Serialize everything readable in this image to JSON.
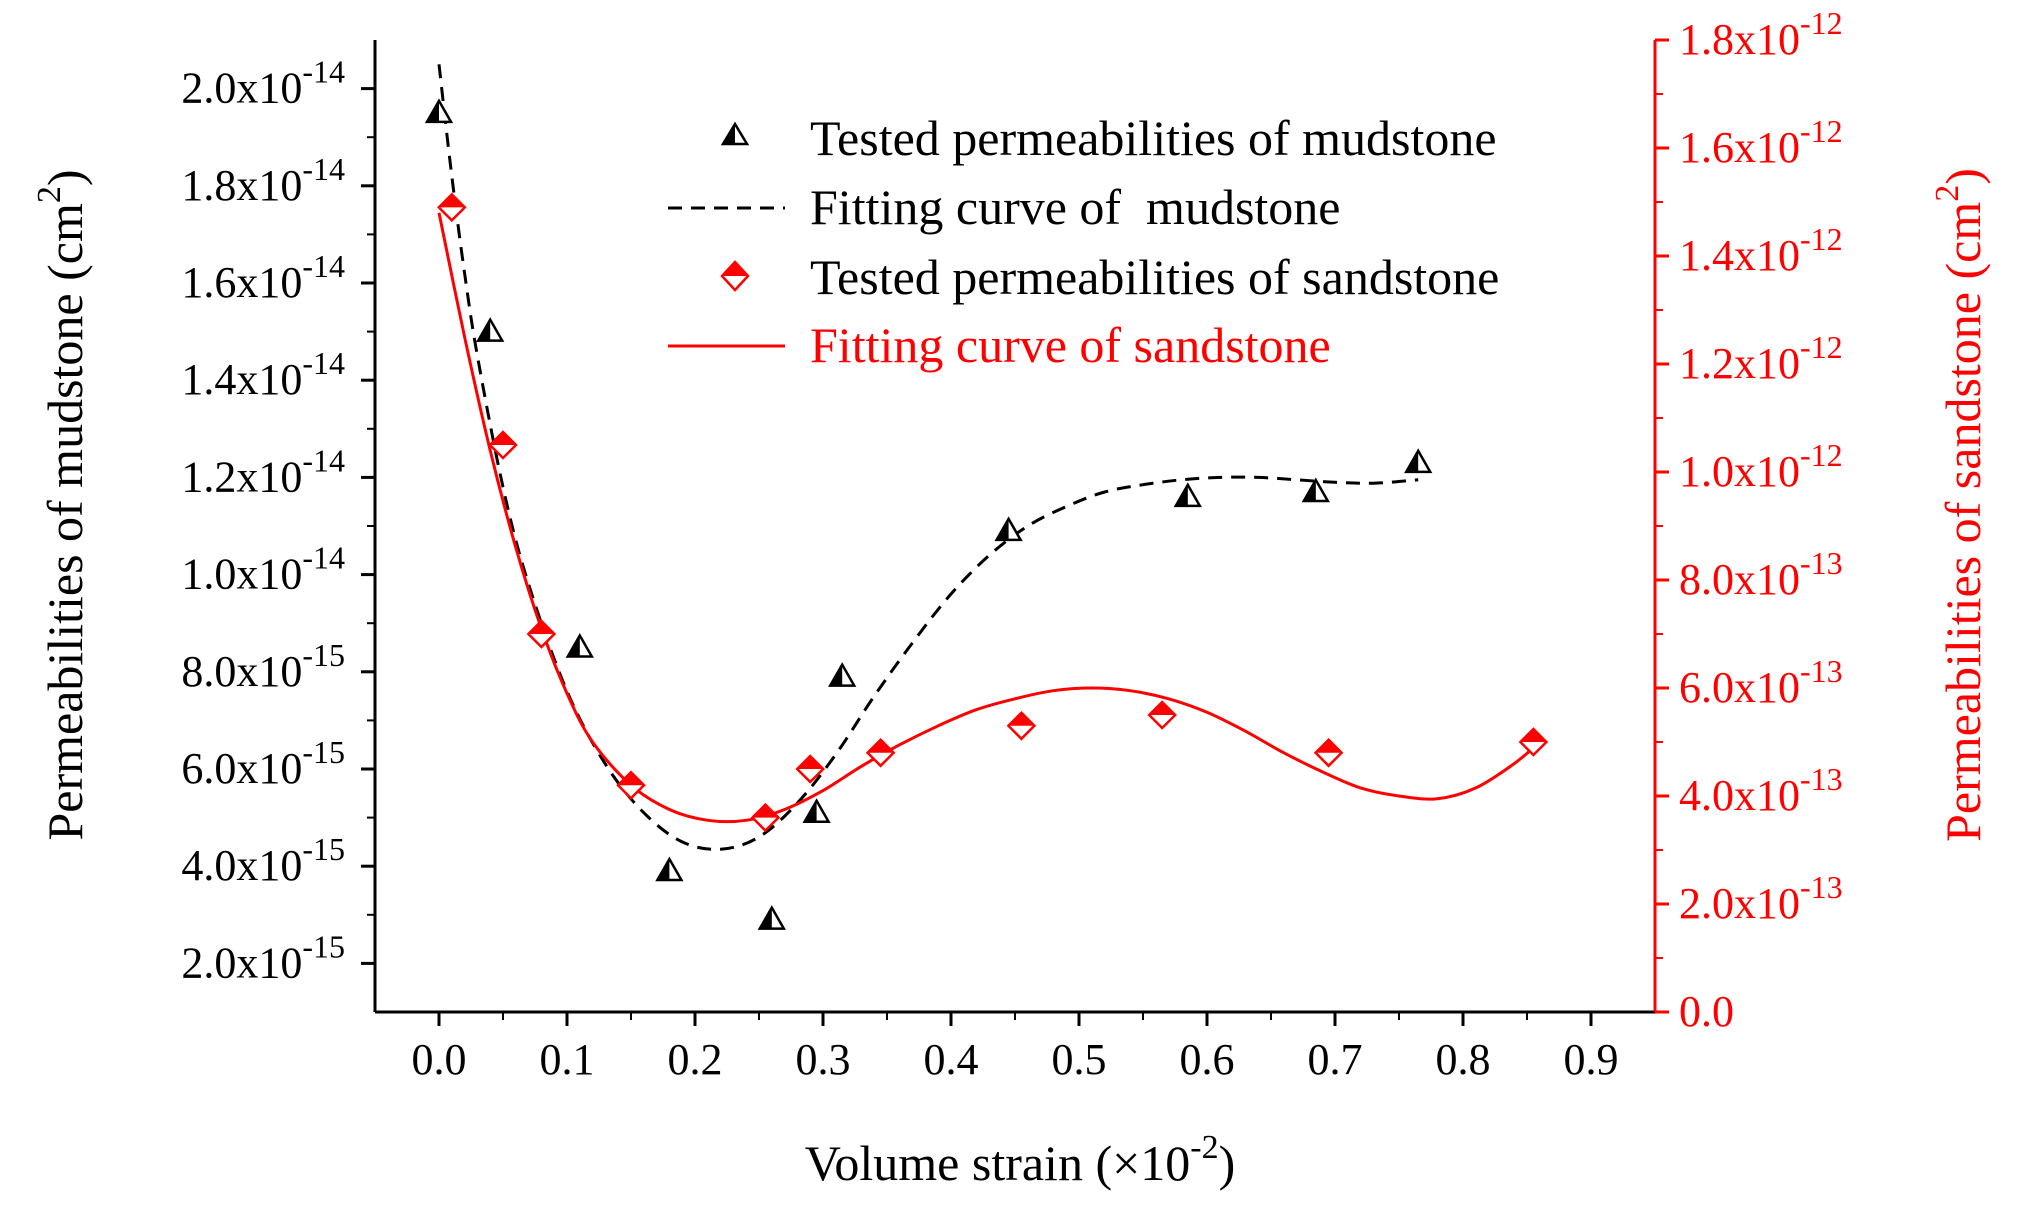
{
  "chart_data": {
    "type": "scatter",
    "title": "",
    "xlabel": {
      "text": "Volume strain (×10",
      "sup": "-2",
      "close": ")"
    },
    "ylabel_left": {
      "text": "Permeabilities of mudstone (cm",
      "sup": "2",
      "close": ")"
    },
    "ylabel_right": {
      "text": "Permeabilities of sandstone (cm",
      "sup": "2",
      "close": ")"
    },
    "xlim": [
      -0.05,
      0.95
    ],
    "ylim_left": [
      1e-15,
      2.1e-14
    ],
    "ylim_right": [
      0,
      1.8e-12
    ],
    "x_ticks": [
      {
        "value": 0.0,
        "label": "0.0"
      },
      {
        "value": 0.1,
        "label": "0.1"
      },
      {
        "value": 0.2,
        "label": "0.2"
      },
      {
        "value": 0.3,
        "label": "0.3"
      },
      {
        "value": 0.4,
        "label": "0.4"
      },
      {
        "value": 0.5,
        "label": "0.5"
      },
      {
        "value": 0.6,
        "label": "0.6"
      },
      {
        "value": 0.7,
        "label": "0.7"
      },
      {
        "value": 0.8,
        "label": "0.8"
      },
      {
        "value": 0.9,
        "label": "0.9"
      }
    ],
    "y_left_ticks": [
      {
        "value": 2e-15,
        "mant": "2.0x10",
        "exp": "-15"
      },
      {
        "value": 4e-15,
        "mant": "4.0x10",
        "exp": "-15"
      },
      {
        "value": 6e-15,
        "mant": "6.0x10",
        "exp": "-15"
      },
      {
        "value": 8e-15,
        "mant": "8.0x10",
        "exp": "-15"
      },
      {
        "value": 1e-14,
        "mant": "1.0x10",
        "exp": "-14"
      },
      {
        "value": 1.2e-14,
        "mant": "1.2x10",
        "exp": "-14"
      },
      {
        "value": 1.4e-14,
        "mant": "1.4x10",
        "exp": "-14"
      },
      {
        "value": 1.6e-14,
        "mant": "1.6x10",
        "exp": "-14"
      },
      {
        "value": 1.8e-14,
        "mant": "1.8x10",
        "exp": "-14"
      },
      {
        "value": 2e-14,
        "mant": "2.0x10",
        "exp": "-14"
      }
    ],
    "y_right_ticks": [
      {
        "value": 0,
        "mant": "0.0",
        "exp": ""
      },
      {
        "value": 2e-13,
        "mant": "2.0x10",
        "exp": "-13"
      },
      {
        "value": 4e-13,
        "mant": "4.0x10",
        "exp": "-13"
      },
      {
        "value": 6e-13,
        "mant": "6.0x10",
        "exp": "-13"
      },
      {
        "value": 8e-13,
        "mant": "8.0x10",
        "exp": "-13"
      },
      {
        "value": 1e-12,
        "mant": "1.0x10",
        "exp": "-12"
      },
      {
        "value": 1.2e-12,
        "mant": "1.2x10",
        "exp": "-12"
      },
      {
        "value": 1.4e-12,
        "mant": "1.4x10",
        "exp": "-12"
      },
      {
        "value": 1.6e-12,
        "mant": "1.6x10",
        "exp": "-12"
      },
      {
        "value": 1.8e-12,
        "mant": "1.8x10",
        "exp": "-12"
      }
    ],
    "series": [
      {
        "name": "Tested permeabilities of mudstone",
        "kind": "scatter",
        "marker": "triangle",
        "axis": "left",
        "color": "#000000",
        "x": [
          0.0,
          0.04,
          0.11,
          0.18,
          0.26,
          0.295,
          0.315,
          0.445,
          0.585,
          0.685,
          0.765
        ],
        "y": [
          1.95e-14,
          1.5e-14,
          8.5e-15,
          3.9e-15,
          2.9e-15,
          5.1e-15,
          7.9e-15,
          1.09e-14,
          1.16e-14,
          1.17e-14,
          1.23e-14
        ]
      },
      {
        "name": "Fitting curve of  mudstone",
        "kind": "line",
        "dash": true,
        "axis": "left",
        "color": "#000000",
        "x": [
          0.0,
          0.01,
          0.02,
          0.03,
          0.05,
          0.07,
          0.1,
          0.13,
          0.16,
          0.19,
          0.22,
          0.25,
          0.28,
          0.31,
          0.34,
          0.37,
          0.4,
          0.43,
          0.46,
          0.49,
          0.52,
          0.55,
          0.58,
          0.61,
          0.64,
          0.67,
          0.7,
          0.73,
          0.765
        ],
        "y": [
          2.05e-14,
          1.82e-14,
          1.62e-14,
          1.45e-14,
          1.18e-14,
          9.8e-15,
          7.6e-15,
          6.1e-15,
          5.1e-15,
          4.5e-15,
          4.35e-15,
          4.6e-15,
          5.3e-15,
          6.3e-15,
          7.5e-15,
          8.6e-15,
          9.6e-15,
          1.04e-14,
          1.1e-14,
          1.14e-14,
          1.17e-14,
          1.185e-14,
          1.195e-14,
          1.2e-14,
          1.2e-14,
          1.195e-14,
          1.19e-14,
          1.188e-14,
          1.195e-14
        ]
      },
      {
        "name": "Tested permeabilities of sandstone",
        "kind": "scatter",
        "marker": "diamond",
        "axis": "right",
        "color": "#ff0000",
        "x": [
          0.01,
          0.05,
          0.08,
          0.15,
          0.255,
          0.29,
          0.345,
          0.455,
          0.565,
          0.695,
          0.855
        ],
        "y": [
          1.49e-12,
          1.05e-12,
          7e-13,
          4.2e-13,
          3.6e-13,
          4.5e-13,
          4.8e-13,
          5.3e-13,
          5.5e-13,
          4.8e-13,
          5e-13
        ]
      },
      {
        "name": "Fitting curve of sandstone",
        "kind": "line",
        "dash": false,
        "axis": "right",
        "color": "#ff0000",
        "x": [
          0.0,
          0.02,
          0.04,
          0.06,
          0.08,
          0.1,
          0.12,
          0.15,
          0.18,
          0.21,
          0.24,
          0.27,
          0.3,
          0.33,
          0.36,
          0.39,
          0.42,
          0.45,
          0.48,
          0.51,
          0.54,
          0.57,
          0.6,
          0.63,
          0.66,
          0.69,
          0.72,
          0.75,
          0.78,
          0.81,
          0.84,
          0.86
        ],
        "y": [
          1.48e-12,
          1.25e-12,
          1.04e-12,
          8.6e-13,
          7.1e-13,
          5.9e-13,
          5e-13,
          4.2e-13,
          3.75e-13,
          3.55e-13,
          3.55e-13,
          3.75e-13,
          4.1e-13,
          4.55e-13,
          4.95e-13,
          5.3e-13,
          5.6e-13,
          5.8e-13,
          5.95e-13,
          6e-13,
          5.95e-13,
          5.8e-13,
          5.55e-13,
          5.2e-13,
          4.8e-13,
          4.45e-13,
          4.15e-13,
          4e-13,
          3.95e-13,
          4.15e-13,
          4.6e-13,
          5e-13
        ]
      }
    ],
    "legend_position": "top-right"
  }
}
